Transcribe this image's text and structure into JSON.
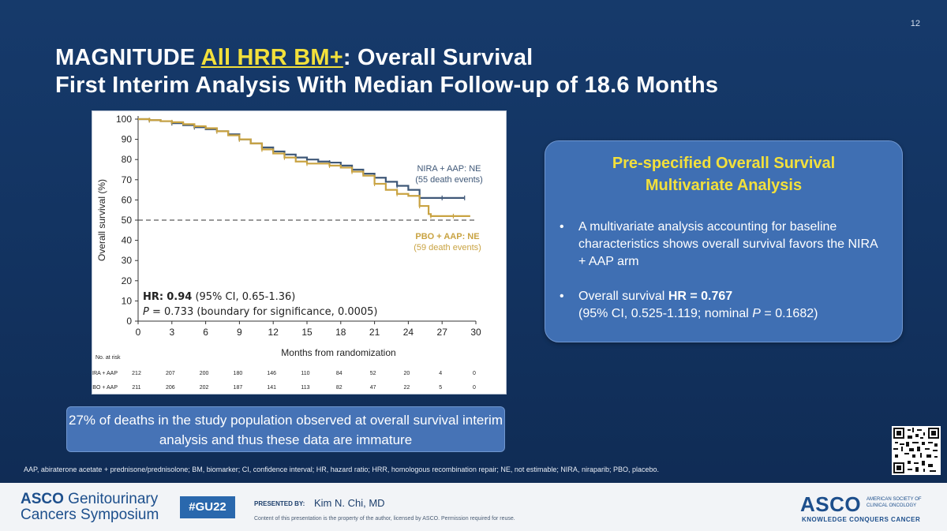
{
  "slide_number": "12",
  "title": {
    "prefix": "MAGNITUDE ",
    "highlight": "All HRR BM+",
    "suffix": ": Overall Survival",
    "line2": "First Interim Analysis With Median Follow-up of 18.6 Months"
  },
  "chart_data": {
    "type": "line",
    "xlabel": "Months from randomization",
    "ylabel": "Overall survival (%)",
    "xlim": [
      0,
      30
    ],
    "ylim": [
      0,
      100
    ],
    "xticks": [
      0,
      3,
      6,
      9,
      12,
      15,
      18,
      21,
      24,
      27,
      30
    ],
    "yticks": [
      0,
      10,
      20,
      30,
      40,
      50,
      60,
      70,
      80,
      90,
      100
    ],
    "reference_line": 50,
    "series": [
      {
        "name": "NIRA + AAP: NE",
        "note": "(55 death events)",
        "color": "#3f5878",
        "x": [
          0,
          1,
          2,
          3,
          4,
          5,
          6,
          7,
          8,
          9,
          10,
          11,
          12,
          13,
          14,
          15,
          16,
          17,
          18,
          19,
          20,
          21,
          22,
          23,
          24,
          25,
          26,
          27,
          28,
          29
        ],
        "y": [
          100,
          99.5,
          99,
          98,
          97,
          96,
          95,
          94,
          92.5,
          90,
          88,
          86,
          84,
          82.5,
          81,
          80,
          79,
          78.5,
          77,
          75,
          73,
          71,
          69,
          67,
          65,
          61,
          61,
          61,
          61,
          61
        ]
      },
      {
        "name": "PBO + AAP: NE",
        "note": "(59 death events)",
        "color": "#c9a342",
        "x": [
          0,
          1,
          2,
          3,
          4,
          5,
          6,
          7,
          8,
          9,
          10,
          11,
          12,
          13,
          14,
          15,
          16,
          17,
          18,
          19,
          20,
          21,
          22,
          23,
          24,
          25,
          25.8,
          26,
          27,
          28,
          29.5
        ],
        "y": [
          100,
          99.5,
          99,
          98.5,
          97.5,
          96.5,
          95.5,
          94,
          92,
          90,
          88,
          85,
          83,
          81,
          79,
          78,
          78,
          77,
          76,
          74,
          72,
          68,
          65,
          63,
          62,
          57,
          53,
          52,
          52,
          52,
          52
        ]
      }
    ],
    "hr_label": "HR:",
    "hr_value": "0.94",
    "hr_ci": " (95% CI, 0.65-1.36)",
    "p_label": "P",
    "p_text": " = 0.733 (boundary for significance, 0.0005)",
    "risk_table": {
      "header": "No. at risk",
      "rows": [
        {
          "label": "NIRA + AAP",
          "values": [
            "212",
            "207",
            "200",
            "180",
            "146",
            "110",
            "84",
            "52",
            "20",
            "4",
            "0"
          ]
        },
        {
          "label": "PBO + AAP",
          "values": [
            "211",
            "206",
            "202",
            "187",
            "141",
            "113",
            "82",
            "47",
            "22",
            "5",
            "0"
          ]
        }
      ]
    }
  },
  "callout": {
    "title_line1": "Pre-specified Overall Survival",
    "title_line2": "Multivariate Analysis",
    "bullet1": "A multivariate analysis accounting for baseline characteristics shows overall survival favors the NIRA + AAP arm",
    "bullet2_prefix": "Overall survival ",
    "bullet2_bold": "HR = 0.767",
    "bullet2_line2_prefix": "(95% CI, 0.525-1.119; nominal ",
    "bullet2_p": "P",
    "bullet2_line2_suffix": " = 0.1682)"
  },
  "note": "27% of deaths in the study population observed at overall survival interim analysis and thus these data are immature",
  "footnote": "AAP, abiraterone acetate + prednisone/prednisolone; BM, biomarker; CI, confidence interval; HR, hazard ratio; HRR, homologous recombination repair; NE, not estimable; NIRA, niraparib; PBO, placebo.",
  "footer": {
    "asco_line1_bold": "ASCO",
    "asco_line1_rest": " Genitourinary",
    "asco_line2": "Cancers Symposium",
    "hashtag": "#GU22",
    "presented_by": "PRESENTED BY:",
    "presenter": "Kim N. Chi, MD",
    "content_note": "Content of this presentation is the property of the author, licensed by ASCO. Permission required for reuse.",
    "asco_logo": "ASCO",
    "asco_full": "AMERICAN SOCIETY OF CLINICAL ONCOLOGY",
    "asco_tagline": "KNOWLEDGE CONQUERS CANCER"
  }
}
